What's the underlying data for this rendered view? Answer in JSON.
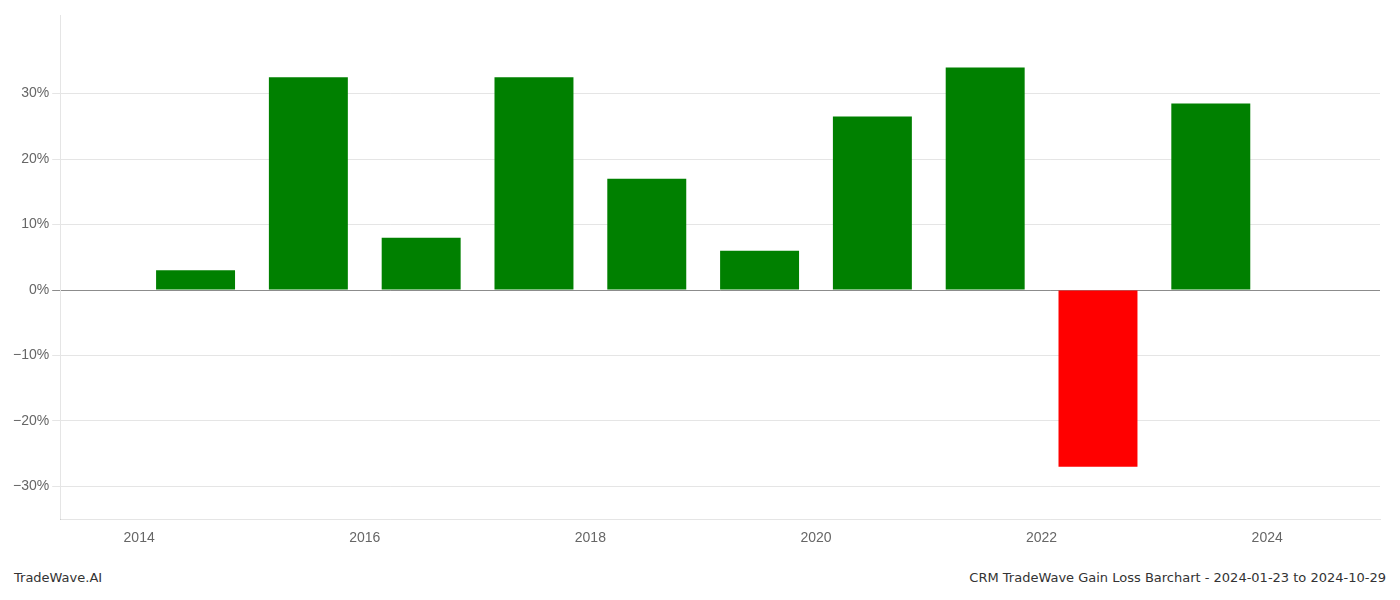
{
  "chart_data": {
    "type": "bar",
    "x": [
      2014.5,
      2015.5,
      2016.5,
      2017.5,
      2018.5,
      2019.5,
      2020.5,
      2021.5,
      2022.5,
      2023.5
    ],
    "values": [
      3.0,
      32.5,
      8.0,
      32.5,
      17.0,
      6.0,
      26.5,
      34.0,
      -27.0,
      28.5
    ],
    "colors": [
      "#008000",
      "#008000",
      "#008000",
      "#008000",
      "#008000",
      "#008000",
      "#008000",
      "#008000",
      "#ff0000",
      "#008000"
    ],
    "xlim": [
      2013.3,
      2025.0
    ],
    "xticks": [
      2014,
      2016,
      2018,
      2020,
      2022,
      2024
    ],
    "ylim": [
      -35,
      42
    ],
    "yticks": [
      {
        "value": -30,
        "label": "−30%"
      },
      {
        "value": -20,
        "label": "−20%"
      },
      {
        "value": -10,
        "label": "−10%"
      },
      {
        "value": 0,
        "label": "0%"
      },
      {
        "value": 10,
        "label": "10%"
      },
      {
        "value": 20,
        "label": "20%"
      },
      {
        "value": 30,
        "label": "30%"
      }
    ],
    "grid": true,
    "annotations": [
      "TradeWave.AI",
      "CRM TradeWave Gain Loss Barchart - 2024-01-23 to 2024-10-29"
    ]
  }
}
